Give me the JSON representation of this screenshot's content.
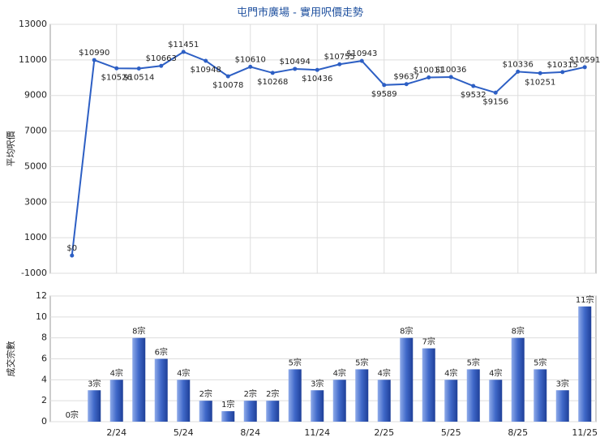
{
  "chart_data": [
    {
      "type": "line",
      "title": "屯門市廣場 - 實用呎價走勢",
      "ylabel": "平均呎價",
      "color": "#2d5fc4",
      "values": [
        0,
        10990,
        10526,
        10514,
        10663,
        11451,
        10948,
        10078,
        10610,
        10268,
        10494,
        10436,
        10755,
        10943,
        9589,
        9637,
        10011,
        10036,
        9532,
        9156,
        10336,
        10251,
        10315,
        10591
      ],
      "value_labels": [
        "$0",
        "$10990",
        "$10526",
        "$10514",
        "$10663",
        "$11451",
        "$10948",
        "$10078",
        "$10610",
        "$10268",
        "$10494",
        "$10436",
        "$10755",
        "$10943",
        "$9589",
        "$9637",
        "$10011",
        "$10036",
        "$9532",
        "$9156",
        "$10336",
        "$10251",
        "$10315",
        "$10591"
      ],
      "ylim": [
        -1000,
        13000
      ],
      "yticks": [
        -1000,
        1000,
        3000,
        5000,
        7000,
        9000,
        11000,
        13000
      ],
      "grid": true,
      "xgrid": true
    },
    {
      "type": "bar",
      "ylabel": "成交宗數",
      "color": "#2f57b8",
      "categories": [
        null,
        null,
        "2/24",
        null,
        null,
        "5/24",
        null,
        null,
        "8/24",
        null,
        null,
        "11/24",
        null,
        null,
        "2/25",
        null,
        null,
        "5/25",
        null,
        null,
        "8/25",
        null,
        null,
        "11/25"
      ],
      "values": [
        0,
        3,
        4,
        8,
        6,
        4,
        2,
        1,
        2,
        2,
        5,
        3,
        4,
        5,
        4,
        8,
        7,
        4,
        5,
        4,
        8,
        5,
        3,
        11
      ],
      "value_labels": [
        "0宗",
        "3宗",
        "4宗",
        "8宗",
        "6宗",
        "4宗",
        "2宗",
        "1宗",
        "2宗",
        "2宗",
        "5宗",
        "3宗",
        "4宗",
        "5宗",
        "4宗",
        "8宗",
        "7宗",
        "4宗",
        "5宗",
        "4宗",
        "8宗",
        "5宗",
        "3宗",
        "11宗"
      ],
      "ylim": [
        0,
        12
      ],
      "yticks": [
        0,
        2,
        4,
        6,
        8,
        10,
        12
      ],
      "grid": true,
      "xgrid": false
    }
  ]
}
